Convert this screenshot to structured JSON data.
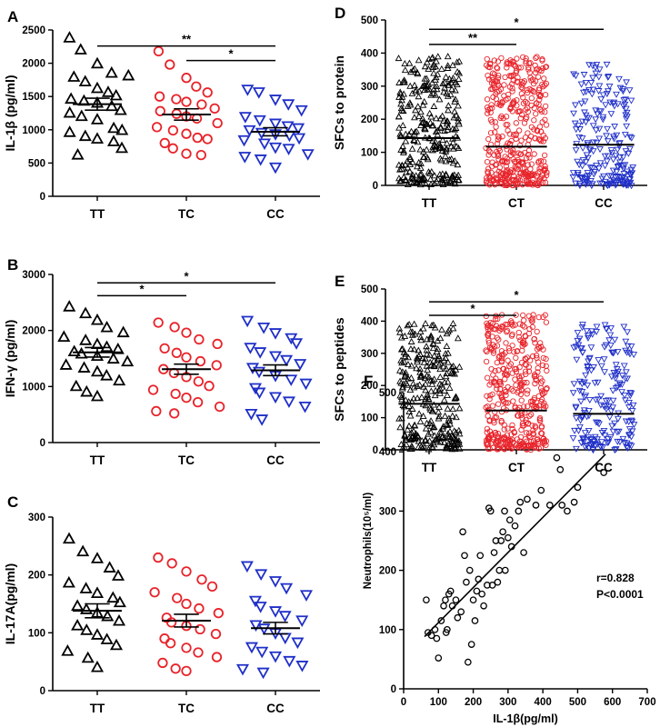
{
  "colors": {
    "TT": "#000000",
    "TC": "#e8232a",
    "CC": "#1f2fc8"
  },
  "chart_data": [
    {
      "id": "A",
      "panel_label": "A",
      "type": "scatter",
      "ylabel": "IL-1β  (pg/ml)",
      "ylim": [
        0,
        2500
      ],
      "yticks": [
        0,
        500,
        1000,
        1500,
        2000,
        2500
      ],
      "categories": [
        "TT",
        "TC",
        "CC"
      ],
      "series": [
        {
          "name": "TT",
          "marker": "triangle-up",
          "mean": 1385,
          "sem": 90,
          "values": [
            2380,
            2200,
            1990,
            1850,
            1810,
            1790,
            1720,
            1620,
            1560,
            1510,
            1460,
            1430,
            1400,
            1350,
            1290,
            1250,
            1200,
            1150,
            1020,
            990,
            960,
            900,
            860,
            820,
            720,
            620
          ]
        },
        {
          "name": "TC",
          "marker": "circle",
          "mean": 1230,
          "sem": 85,
          "values": [
            2180,
            1980,
            1780,
            1650,
            1560,
            1500,
            1460,
            1420,
            1380,
            1320,
            1280,
            1240,
            1200,
            1170,
            1100,
            1040,
            990,
            940,
            880,
            860,
            800,
            720,
            640,
            620
          ]
        },
        {
          "name": "CC",
          "marker": "triangle-down",
          "mean": 970,
          "sem": 60,
          "values": [
            1610,
            1570,
            1460,
            1390,
            1300,
            1200,
            1150,
            1100,
            1060,
            1030,
            1000,
            960,
            940,
            920,
            880,
            850,
            800,
            740,
            720,
            640,
            600,
            560,
            440
          ]
        }
      ],
      "significance": [
        {
          "from": 0,
          "to": 2,
          "label": "**",
          "y": 2260
        },
        {
          "from": 1,
          "to": 2,
          "label": "*",
          "y": 2040
        }
      ]
    },
    {
      "id": "B",
      "panel_label": "B",
      "type": "scatter",
      "ylabel": "IFN-γ  (pg/ml)",
      "ylim": [
        0,
        3000
      ],
      "yticks": [
        0,
        1000,
        2000,
        3000
      ],
      "categories": [
        "TT",
        "TC",
        "CC"
      ],
      "series": [
        {
          "name": "TT",
          "marker": "triangle-up",
          "mean": 1610,
          "sem": 85,
          "values": [
            2420,
            2300,
            2180,
            2050,
            1960,
            1880,
            1820,
            1750,
            1700,
            1660,
            1620,
            1580,
            1540,
            1490,
            1440,
            1380,
            1330,
            1260,
            1190,
            1100,
            1000,
            900,
            820
          ]
        },
        {
          "name": "TC",
          "marker": "circle",
          "mean": 1310,
          "sem": 90,
          "values": [
            2140,
            2060,
            1960,
            1840,
            1760,
            1680,
            1600,
            1520,
            1450,
            1380,
            1310,
            1240,
            1170,
            1090,
            1010,
            940,
            870,
            800,
            720,
            640,
            560,
            520
          ]
        },
        {
          "name": "CC",
          "marker": "triangle-down",
          "mean": 1290,
          "sem": 95,
          "values": [
            2180,
            2060,
            1960,
            1870,
            1780,
            1700,
            1620,
            1550,
            1480,
            1410,
            1340,
            1270,
            1200,
            1130,
            1060,
            980,
            900,
            820,
            740,
            650,
            520,
            420
          ]
        }
      ],
      "significance": [
        {
          "from": 0,
          "to": 2,
          "label": "*",
          "y": 2850
        },
        {
          "from": 0,
          "to": 1,
          "label": "*",
          "y": 2620
        }
      ]
    },
    {
      "id": "C",
      "panel_label": "C",
      "type": "scatter",
      "ylabel": "IL-17A(pg/ml)",
      "ylim": [
        0,
        300
      ],
      "yticks": [
        0,
        100,
        200,
        300
      ],
      "categories": [
        "TT",
        "TC",
        "CC"
      ],
      "series": [
        {
          "name": "TT",
          "marker": "triangle-up",
          "mean": 138,
          "sem": 12,
          "values": [
            262,
            240,
            228,
            212,
            198,
            186,
            176,
            168,
            160,
            152,
            146,
            140,
            134,
            128,
            120,
            112,
            104,
            96,
            88,
            78,
            68,
            56,
            40
          ]
        },
        {
          "name": "TC",
          "marker": "circle",
          "mean": 121,
          "sem": 11,
          "values": [
            230,
            220,
            206,
            192,
            180,
            170,
            160,
            150,
            142,
            134,
            126,
            118,
            112,
            106,
            98,
            90,
            82,
            74,
            66,
            58,
            48,
            38,
            34
          ]
        },
        {
          "name": "CC",
          "marker": "triangle-down",
          "mean": 108,
          "sem": 10,
          "values": [
            216,
            202,
            190,
            178,
            166,
            156,
            146,
            138,
            130,
            122,
            114,
            108,
            100,
            92,
            84,
            76,
            68,
            60,
            52,
            44,
            38,
            32
          ]
        }
      ],
      "significance": []
    },
    {
      "id": "D",
      "panel_label": "D",
      "type": "scatter",
      "ylabel": "SFCs to protein",
      "ylim": [
        0,
        500
      ],
      "yticks": [
        0,
        100,
        200,
        300,
        400,
        500
      ],
      "categories": [
        "TT",
        "CT",
        "CC"
      ],
      "series": [
        {
          "name": "TT",
          "marker": "triangle-up",
          "mean": 143,
          "sem": 8,
          "n": 300,
          "max": 395
        },
        {
          "name": "CT",
          "marker": "circle",
          "mean": 117,
          "sem": 6,
          "n": 420,
          "max": 392
        },
        {
          "name": "CC",
          "marker": "triangle-down",
          "mean": 123,
          "sem": 8,
          "n": 210,
          "max": 368
        }
      ],
      "significance": [
        {
          "from": 0,
          "to": 2,
          "label": "*",
          "y": 472
        },
        {
          "from": 0,
          "to": 1,
          "label": "**",
          "y": 426
        }
      ]
    },
    {
      "id": "E",
      "panel_label": "E",
      "type": "scatter",
      "ylabel": "SFCs to peptides",
      "ylim": [
        0,
        500
      ],
      "yticks": [
        0,
        100,
        200,
        300,
        400,
        500
      ],
      "categories": [
        "TT",
        "CT",
        "CC"
      ],
      "series": [
        {
          "name": "TT",
          "marker": "triangle-up",
          "mean": 143,
          "sem": 8,
          "n": 300,
          "max": 392
        },
        {
          "name": "CT",
          "marker": "circle",
          "mean": 122,
          "sem": 6,
          "n": 420,
          "max": 420
        },
        {
          "name": "CC",
          "marker": "triangle-down",
          "mean": 112,
          "sem": 8,
          "n": 200,
          "max": 392
        }
      ],
      "significance": [
        {
          "from": 0,
          "to": 2,
          "label": "*",
          "y": 460
        },
        {
          "from": 0,
          "to": 1,
          "label": "*",
          "y": 418
        }
      ]
    },
    {
      "id": "F",
      "panel_label": "F",
      "type": "scatter",
      "xlabel": "IL-1β(pg/ml)",
      "ylabel": "Neutrophils(10⁵/ml)",
      "xlim": [
        0,
        700
      ],
      "ylim": [
        0,
        500
      ],
      "xticks": [
        0,
        100,
        200,
        300,
        400,
        500,
        600,
        700
      ],
      "yticks": [
        0,
        100,
        200,
        300,
        400,
        500
      ],
      "annotations": [
        "r=0.828",
        "P<0.0001"
      ],
      "fit": {
        "x": [
          60,
          580
        ],
        "y": [
          88,
          396
        ]
      },
      "points": [
        [
          65,
          150
        ],
        [
          70,
          95
        ],
        [
          80,
          90
        ],
        [
          90,
          100
        ],
        [
          95,
          85
        ],
        [
          100,
          52
        ],
        [
          108,
          115
        ],
        [
          115,
          140
        ],
        [
          120,
          150
        ],
        [
          122,
          95
        ],
        [
          125,
          100
        ],
        [
          130,
          160
        ],
        [
          135,
          165
        ],
        [
          140,
          140
        ],
        [
          150,
          150
        ],
        [
          155,
          120
        ],
        [
          165,
          130
        ],
        [
          170,
          265
        ],
        [
          175,
          225
        ],
        [
          180,
          180
        ],
        [
          185,
          45
        ],
        [
          190,
          200
        ],
        [
          195,
          75
        ],
        [
          200,
          150
        ],
        [
          205,
          115
        ],
        [
          210,
          165
        ],
        [
          215,
          185
        ],
        [
          220,
          225
        ],
        [
          225,
          160
        ],
        [
          230,
          140
        ],
        [
          240,
          175
        ],
        [
          245,
          305
        ],
        [
          250,
          300
        ],
        [
          255,
          175
        ],
        [
          260,
          230
        ],
        [
          265,
          250
        ],
        [
          270,
          180
        ],
        [
          275,
          200
        ],
        [
          280,
          250
        ],
        [
          285,
          265
        ],
        [
          290,
          300
        ],
        [
          292,
          200
        ],
        [
          300,
          255
        ],
        [
          305,
          285
        ],
        [
          310,
          240
        ],
        [
          320,
          275
        ],
        [
          330,
          300
        ],
        [
          335,
          315
        ],
        [
          345,
          230
        ],
        [
          355,
          320
        ],
        [
          380,
          310
        ],
        [
          395,
          335
        ],
        [
          420,
          310
        ],
        [
          440,
          390
        ],
        [
          450,
          370
        ],
        [
          455,
          310
        ],
        [
          470,
          300
        ],
        [
          490,
          315
        ],
        [
          500,
          340
        ],
        [
          575,
          365
        ]
      ]
    }
  ]
}
